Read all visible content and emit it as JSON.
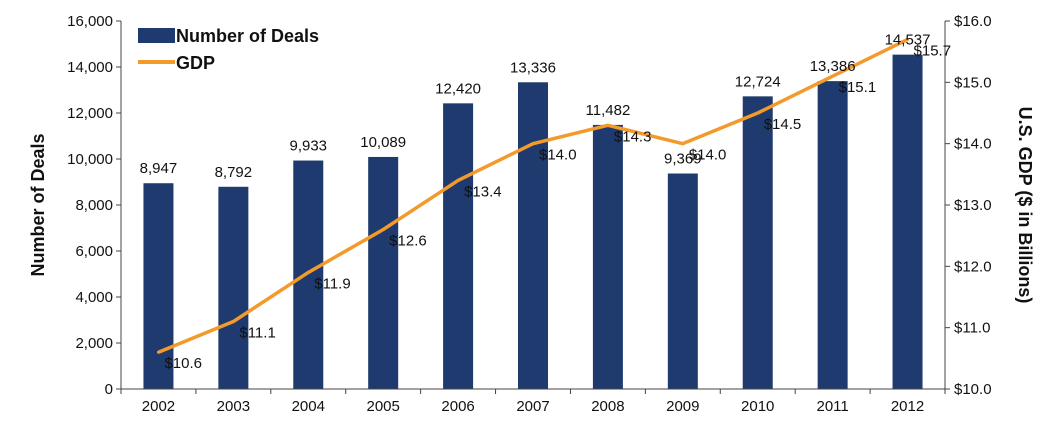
{
  "chart_data": {
    "type": "bar+line",
    "categories": [
      "2002",
      "2003",
      "2004",
      "2005",
      "2006",
      "2007",
      "2008",
      "2009",
      "2010",
      "2011",
      "2012"
    ],
    "series": [
      {
        "name": "Number of Deals",
        "kind": "bar",
        "axis": "left",
        "color": "#1f3a6e",
        "values": [
          8947,
          8792,
          9933,
          10089,
          12420,
          13336,
          11482,
          9369,
          12724,
          13386,
          14537
        ],
        "labels": [
          "8,947",
          "8,792",
          "9,933",
          "10,089",
          "12,420",
          "13,336",
          "11,482",
          "9,369",
          "12,724",
          "13,386",
          "14,537"
        ]
      },
      {
        "name": "GDP",
        "kind": "line",
        "axis": "right",
        "color": "#f39a2b",
        "values": [
          10.6,
          11.1,
          11.9,
          12.6,
          13.4,
          14.0,
          14.3,
          14.0,
          14.5,
          15.1,
          15.7
        ],
        "labels": [
          "$10.6",
          "$11.1",
          "$11.9",
          "$12.6",
          "$13.4",
          "$14.0",
          "$14.3",
          "$14.0",
          "$14.5",
          "$15.1",
          "$15.7"
        ]
      }
    ],
    "ylabel_left": "Number of Deals",
    "ylabel_right": "U.S. GDP ($ in Billions)",
    "ylim_left": [
      0,
      16000
    ],
    "ylim_right": [
      10,
      16
    ],
    "yticks_left": [
      "0",
      "2,000",
      "4,000",
      "6,000",
      "8,000",
      "10,000",
      "12,000",
      "14,000",
      "16,000"
    ],
    "yticks_right": [
      "$10.0",
      "$11.0",
      "$12.0",
      "$13.0",
      "$14.0",
      "$15.0",
      "$16.0"
    ],
    "legend_position": "top-left",
    "grid": false
  }
}
